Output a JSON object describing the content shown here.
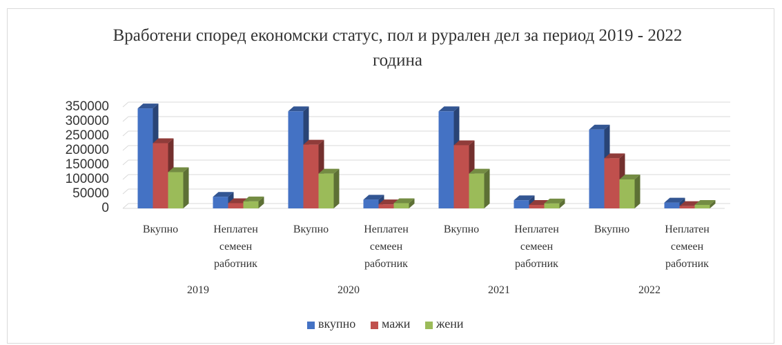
{
  "chart_data": {
    "type": "bar",
    "title": "Вработени според економски статус, пол и рурален дел за период 2019 - 2022 година",
    "categories": [
      "Вкупно",
      "Неплатен семеен работник",
      "Вкупно",
      "Неплатен семеен работник",
      "Вкупно",
      "Неплатен семеен работник",
      "Вкупно",
      "Неплатен семеен работник"
    ],
    "groups": [
      "2019",
      "2020",
      "2021",
      "2022"
    ],
    "series": [
      {
        "name": "вкупно",
        "color": "#4472c4",
        "values": [
          345000,
          40000,
          335000,
          30000,
          335000,
          28000,
          272000,
          20000
        ]
      },
      {
        "name": "мажи",
        "color": "#c0504d",
        "values": [
          225000,
          18000,
          220000,
          14000,
          218000,
          12000,
          173000,
          8000
        ]
      },
      {
        "name": "жени",
        "color": "#9bbb59",
        "values": [
          125000,
          24000,
          120000,
          18000,
          120000,
          17000,
          100000,
          12000
        ]
      }
    ],
    "ylim": [
      0,
      350000
    ],
    "yticks": [
      0,
      50000,
      100000,
      150000,
      200000,
      250000,
      300000,
      350000
    ],
    "grid": true,
    "legend": "bottom"
  }
}
